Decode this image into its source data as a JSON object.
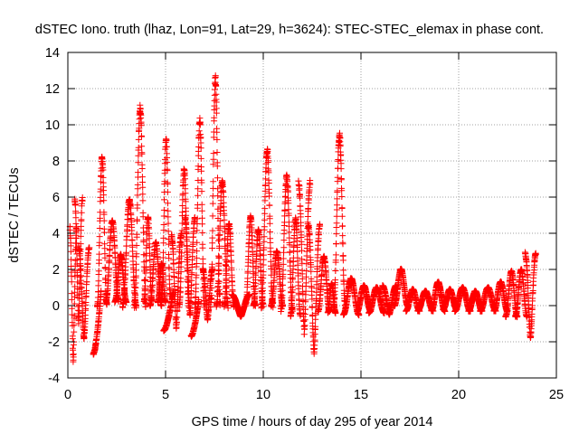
{
  "chart_data": {
    "type": "scatter",
    "title": "dSTEC Iono. truth (lhaz, Lon=91, Lat=29, h=3624): STEC-STEC_elemax in phase cont.",
    "xlabel": "GPS time / hours of day 295 of year 2014",
    "ylabel": "dSTEC  / TECUs",
    "xlim": [
      0,
      25
    ],
    "ylim": [
      -4,
      14
    ],
    "x_ticks": [
      0,
      5,
      10,
      15,
      20,
      25
    ],
    "y_ticks": [
      -4,
      -2,
      0,
      2,
      4,
      6,
      8,
      10,
      12,
      14
    ],
    "x_tick_labels": [
      "0",
      "5",
      "10",
      "15",
      "20",
      "25"
    ],
    "y_tick_labels": [
      "-4",
      "-2",
      "0",
      "2",
      "4",
      "6",
      "8",
      "10",
      "12",
      "14"
    ],
    "grid": true,
    "marker": "+",
    "marker_color": "#ff0000",
    "series": [
      {
        "name": "dSTEC",
        "tracks": [
          {
            "t0": 0.1,
            "t1": 0.45,
            "vmin": -3.1,
            "vmax": 4.3,
            "shape": "v"
          },
          {
            "t0": 0.35,
            "t1": 0.75,
            "vmin": -1.0,
            "vmax": 5.9,
            "shape": "v"
          },
          {
            "t0": 0.55,
            "t1": 1.1,
            "vmin": -1.8,
            "vmax": 3.2,
            "shape": "v"
          },
          {
            "t0": 1.3,
            "t1": 1.7,
            "vmin": -2.7,
            "vmax": 0.8,
            "shape": "up"
          },
          {
            "t0": 1.5,
            "t1": 2.0,
            "vmin": 0.0,
            "vmax": 8.2,
            "shape": "peak"
          },
          {
            "t0": 1.95,
            "t1": 2.6,
            "vmin": 0.3,
            "vmax": 4.7,
            "shape": "peak"
          },
          {
            "t0": 2.4,
            "t1": 3.0,
            "vmin": 0.2,
            "vmax": 2.8,
            "shape": "peak"
          },
          {
            "t0": 2.8,
            "t1": 3.5,
            "vmin": 0.0,
            "vmax": 5.8,
            "shape": "peak"
          },
          {
            "t0": 3.4,
            "t1": 4.0,
            "vmin": 0.0,
            "vmax": 10.9,
            "shape": "peak"
          },
          {
            "t0": 3.9,
            "t1": 4.3,
            "vmin": 0.3,
            "vmax": 4.9,
            "shape": "peak"
          },
          {
            "t0": 4.2,
            "t1": 4.8,
            "vmin": 0.0,
            "vmax": 3.5,
            "shape": "peak"
          },
          {
            "t0": 4.6,
            "t1": 5.0,
            "vmin": 0.2,
            "vmax": 2.3,
            "shape": "peak"
          },
          {
            "t0": 4.8,
            "t1": 5.25,
            "vmin": 0.5,
            "vmax": 9.2,
            "shape": "peak"
          },
          {
            "t0": 4.9,
            "t1": 5.4,
            "vmin": -1.4,
            "vmax": 0.8,
            "shape": "up"
          },
          {
            "t0": 5.3,
            "t1": 5.8,
            "vmin": -1.2,
            "vmax": 3.9,
            "shape": "v"
          },
          {
            "t0": 5.7,
            "t1": 6.2,
            "vmin": 0.0,
            "vmax": 7.5,
            "shape": "peak"
          },
          {
            "t0": 6.0,
            "t1": 6.5,
            "vmin": -0.6,
            "vmax": 4.8,
            "shape": "v"
          },
          {
            "t0": 6.3,
            "t1": 6.7,
            "vmin": -1.7,
            "vmax": 0.3,
            "shape": "up"
          },
          {
            "t0": 6.5,
            "t1": 7.0,
            "vmin": 0.0,
            "vmax": 10.2,
            "shape": "peak"
          },
          {
            "t0": 6.9,
            "t1": 7.4,
            "vmin": -0.8,
            "vmax": 2.0,
            "shape": "v"
          },
          {
            "t0": 7.3,
            "t1": 7.8,
            "vmin": 0.0,
            "vmax": 12.5,
            "shape": "peak"
          },
          {
            "t0": 7.6,
            "t1": 8.2,
            "vmin": 0.0,
            "vmax": 6.8,
            "shape": "peak"
          },
          {
            "t0": 8.0,
            "t1": 8.5,
            "vmin": 0.0,
            "vmax": 4.5,
            "shape": "peak"
          },
          {
            "t0": 8.4,
            "t1": 9.3,
            "vmin": -0.6,
            "vmax": 0.6,
            "shape": "v"
          },
          {
            "t0": 9.1,
            "t1": 9.6,
            "vmin": 0.0,
            "vmax": 4.9,
            "shape": "peak"
          },
          {
            "t0": 9.5,
            "t1": 10.0,
            "vmin": 0.0,
            "vmax": 4.2,
            "shape": "peak"
          },
          {
            "t0": 9.9,
            "t1": 10.5,
            "vmin": 0.0,
            "vmax": 8.6,
            "shape": "peak"
          },
          {
            "t0": 10.4,
            "t1": 11.0,
            "vmin": 0.0,
            "vmax": 3.0,
            "shape": "peak"
          },
          {
            "t0": 10.9,
            "t1": 11.5,
            "vmin": -0.2,
            "vmax": 7.1,
            "shape": "peak"
          },
          {
            "t0": 11.4,
            "t1": 11.9,
            "vmin": -0.5,
            "vmax": 4.8,
            "shape": "peak"
          },
          {
            "t0": 11.8,
            "t1": 12.4,
            "vmin": -1.5,
            "vmax": 6.8,
            "shape": "v"
          },
          {
            "t0": 12.3,
            "t1": 12.9,
            "vmin": -2.6,
            "vmax": 4.4,
            "shape": "v"
          },
          {
            "t0": 12.8,
            "t1": 13.4,
            "vmin": -0.3,
            "vmax": 2.7,
            "shape": "peak"
          },
          {
            "t0": 13.3,
            "t1": 13.7,
            "vmin": -0.4,
            "vmax": 1.2,
            "shape": "peak"
          },
          {
            "t0": 13.6,
            "t1": 14.2,
            "vmin": 0.0,
            "vmax": 9.4,
            "shape": "peak"
          },
          {
            "t0": 14.1,
            "t1": 14.9,
            "vmin": -0.5,
            "vmax": 1.5,
            "shape": "peak"
          },
          {
            "t0": 14.8,
            "t1": 15.5,
            "vmin": -0.3,
            "vmax": 1.1,
            "shape": "peak"
          },
          {
            "t0": 15.4,
            "t1": 16.2,
            "vmin": -0.4,
            "vmax": 1.0,
            "shape": "peak"
          },
          {
            "t0": 16.1,
            "t1": 16.8,
            "vmin": -0.5,
            "vmax": 1.1,
            "shape": "v"
          },
          {
            "t0": 16.7,
            "t1": 17.4,
            "vmin": 0.0,
            "vmax": 2.0,
            "shape": "peak"
          },
          {
            "t0": 17.3,
            "t1": 18.0,
            "vmin": -0.3,
            "vmax": 0.9,
            "shape": "peak"
          },
          {
            "t0": 17.9,
            "t1": 18.7,
            "vmin": -0.3,
            "vmax": 0.8,
            "shape": "peak"
          },
          {
            "t0": 18.6,
            "t1": 19.3,
            "vmin": -0.3,
            "vmax": 1.3,
            "shape": "peak"
          },
          {
            "t0": 19.2,
            "t1": 19.9,
            "vmin": -0.2,
            "vmax": 0.9,
            "shape": "peak"
          },
          {
            "t0": 19.8,
            "t1": 20.6,
            "vmin": -0.3,
            "vmax": 1.0,
            "shape": "peak"
          },
          {
            "t0": 20.5,
            "t1": 21.2,
            "vmin": -0.3,
            "vmax": 0.8,
            "shape": "peak"
          },
          {
            "t0": 21.1,
            "t1": 21.9,
            "vmin": -0.3,
            "vmax": 1.0,
            "shape": "peak"
          },
          {
            "t0": 21.8,
            "t1": 22.5,
            "vmin": -0.3,
            "vmax": 1.3,
            "shape": "peak"
          },
          {
            "t0": 22.4,
            "t1": 23.0,
            "vmin": -0.6,
            "vmax": 1.9,
            "shape": "peak"
          },
          {
            "t0": 22.9,
            "t1": 23.5,
            "vmin": -0.6,
            "vmax": 2.0,
            "shape": "peak"
          },
          {
            "t0": 23.4,
            "t1": 23.95,
            "vmin": -1.8,
            "vmax": 2.9,
            "shape": "v"
          }
        ]
      }
    ]
  }
}
